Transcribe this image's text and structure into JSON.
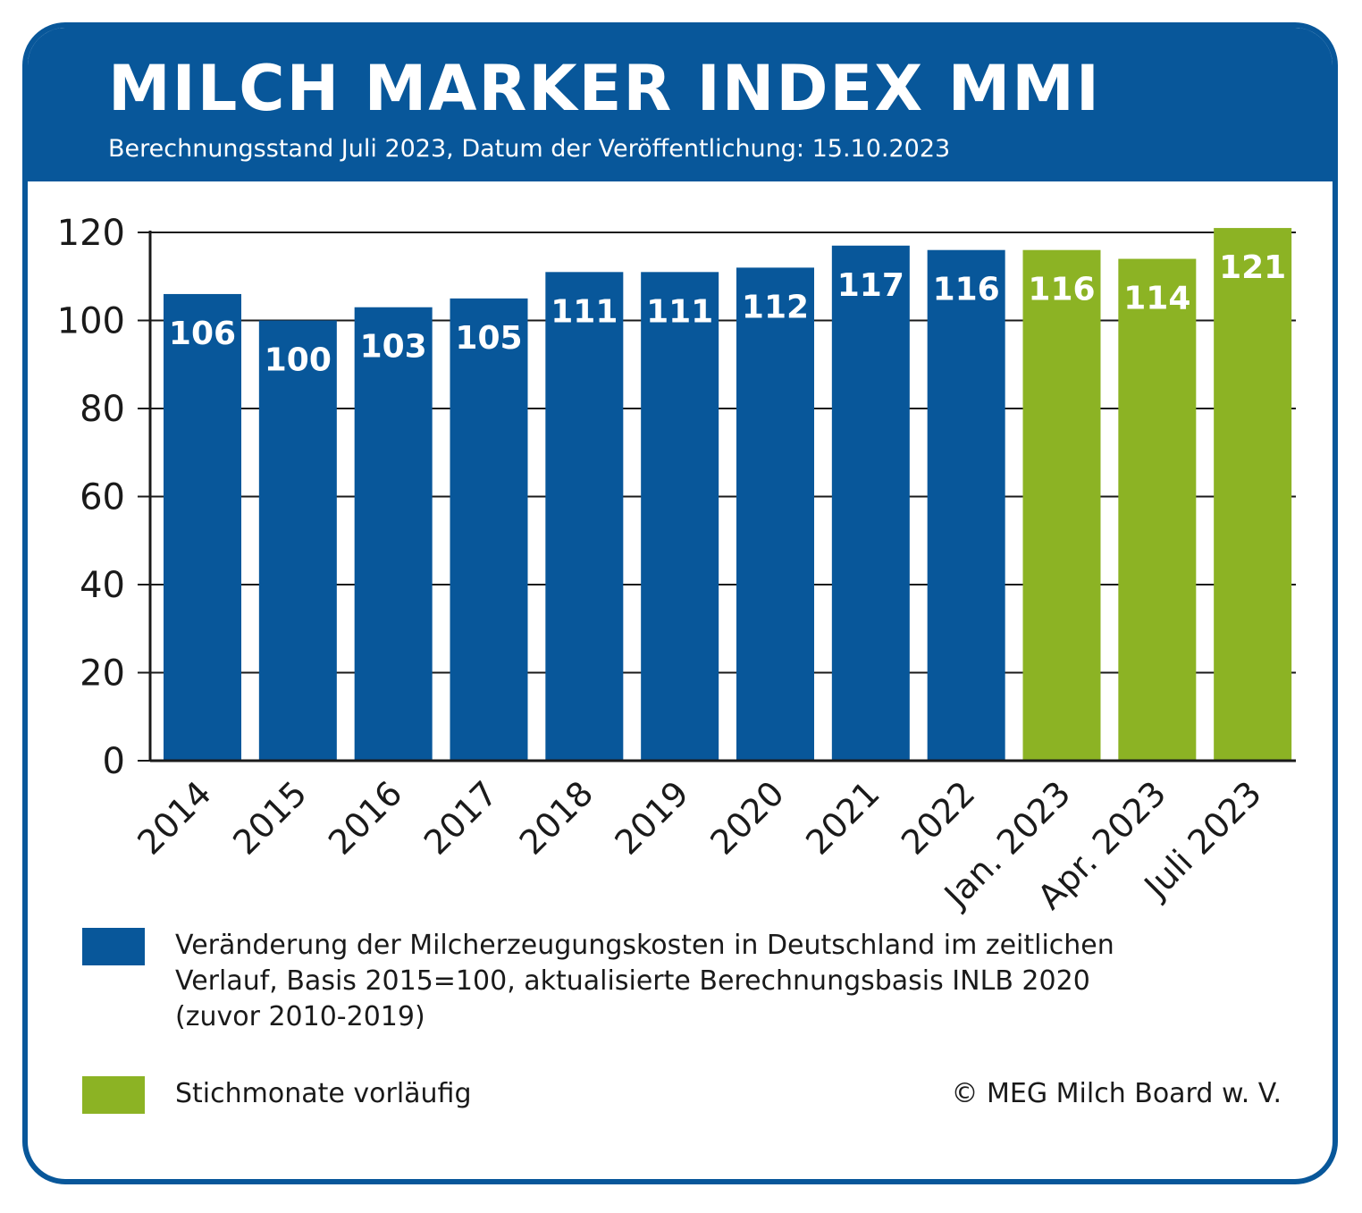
{
  "header": {
    "title": "MILCH MARKER INDEX MMI",
    "subtitle": "Berechnungsstand Juli 2023, Datum der Veröffentlichung: 15.10.2023"
  },
  "colors": {
    "brand_blue": "#08579a",
    "provisional_green": "#8cb324",
    "axis": "#1a1a1a"
  },
  "chart_data": {
    "type": "bar",
    "categories": [
      "2014",
      "2015",
      "2016",
      "2017",
      "2018",
      "2019",
      "2020",
      "2021",
      "2022",
      "Jan. 2023",
      "Apr. 2023",
      "Juli 2023"
    ],
    "values": [
      106,
      100,
      103,
      105,
      111,
      111,
      112,
      117,
      116,
      116,
      114,
      121
    ],
    "value_labels": [
      "106",
      "100",
      "103",
      "105",
      "111",
      "111",
      "112",
      "117",
      "116",
      "116",
      "114",
      "121"
    ],
    "provisional": [
      false,
      false,
      false,
      false,
      false,
      false,
      false,
      false,
      false,
      true,
      true,
      true
    ],
    "ylim": [
      0,
      120
    ],
    "yticks": [
      0,
      20,
      40,
      60,
      80,
      100,
      120
    ],
    "grid": true,
    "xlabel": "",
    "ylabel": ""
  },
  "legend": {
    "items": [
      {
        "label_lines": [
          "Veränderung der Milcherzeugungskosten in Deutschland im zeitlichen",
          "Verlauf, Basis 2015=100, aktualisierte Berechnungsbasis INLB 2020",
          "(zuvor 2010-2019)"
        ],
        "color": "#08579a"
      },
      {
        "label_lines": [
          "Stichmonate vorläufig"
        ],
        "color": "#8cb324"
      }
    ]
  },
  "footer": {
    "copyright": "© MEG Milch Board w. V."
  }
}
